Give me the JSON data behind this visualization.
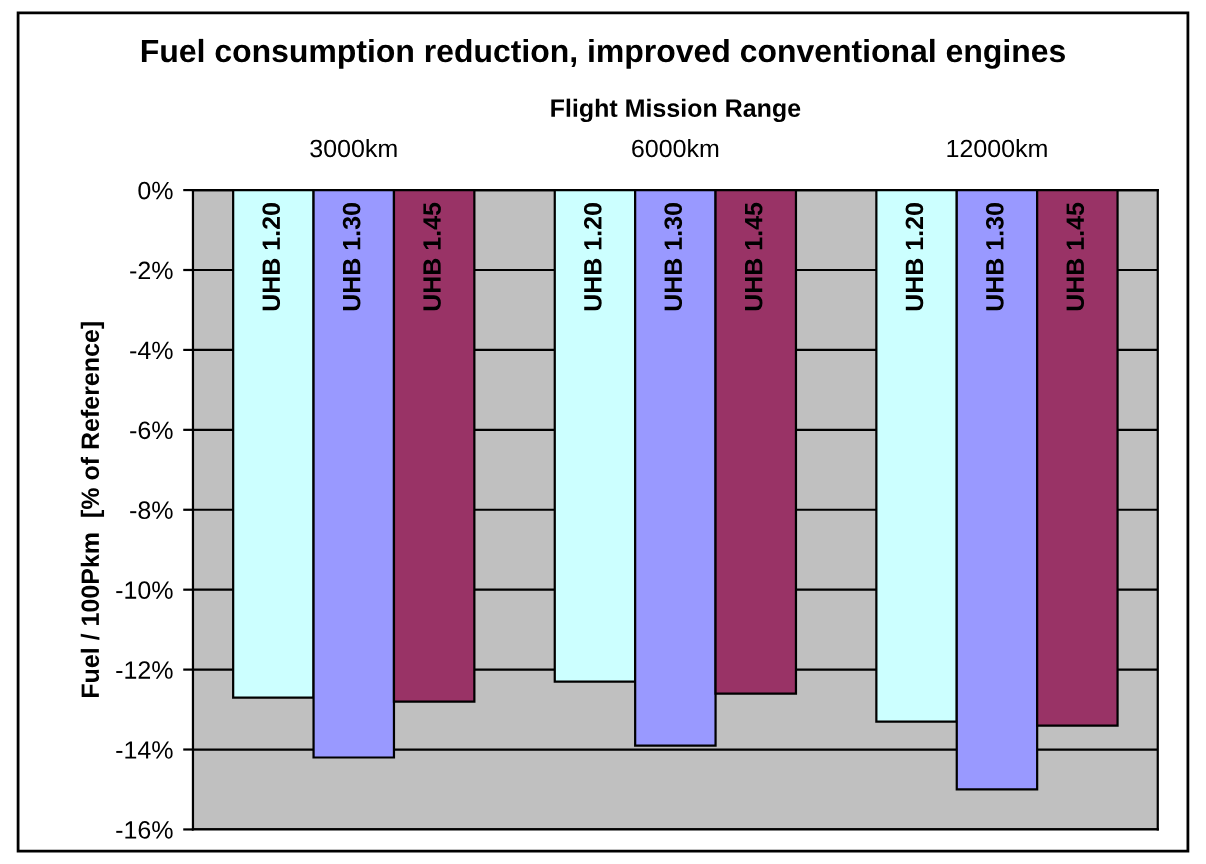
{
  "chart_data": {
    "type": "bar",
    "title": "Fuel consumption reduction, improved conventional engines",
    "xlabel": "Flight Mission Range",
    "ylabel": "Fuel / 100Pkm  [% of Reference]",
    "categories": [
      "3000km",
      "6000km",
      "12000km"
    ],
    "series": [
      {
        "name": "UHB 1.20",
        "color": "#ccffff",
        "values": [
          -12.7,
          -12.3,
          -13.3
        ]
      },
      {
        "name": "UHB 1.30",
        "color": "#9999ff",
        "values": [
          -14.2,
          -13.9,
          -15.0
        ]
      },
      {
        "name": "UHB 1.45",
        "color": "#993366",
        "values": [
          -12.8,
          -12.6,
          -13.4
        ]
      }
    ],
    "ylim": [
      -16,
      0
    ],
    "yticks": [
      {
        "value": -16,
        "label": "-16%"
      },
      {
        "value": -14,
        "label": "-14%"
      },
      {
        "value": -12,
        "label": "-12%"
      },
      {
        "value": -10,
        "label": "-10%"
      },
      {
        "value": -8,
        "label": "-8%"
      },
      {
        "value": -6,
        "label": "-6%"
      },
      {
        "value": -4,
        "label": "-4%"
      },
      {
        "value": -2,
        "label": "-2%"
      },
      {
        "value": 0,
        "label": "0%"
      }
    ],
    "grid": "y",
    "legend": false
  }
}
